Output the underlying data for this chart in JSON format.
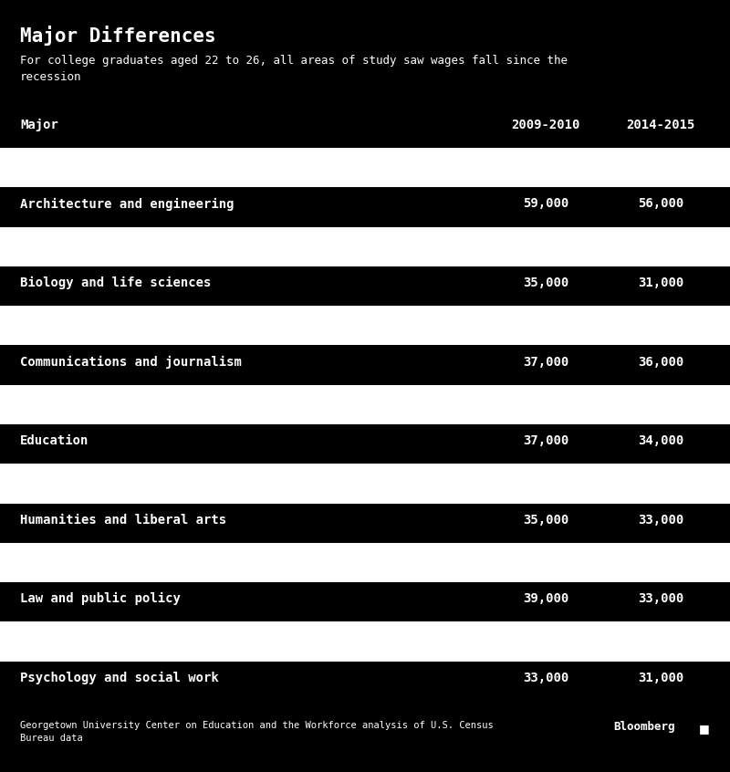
{
  "title": "Major Differences",
  "subtitle": "For college graduates aged 22 to 26, all areas of study saw wages fall since the\nrecession",
  "col_major": "Major",
  "col_2009": "2009-2010",
  "col_2014": "2014-2015",
  "rows": [
    {
      "major": "Architecture and engineering",
      "val2009": "59,000",
      "val2014": "56,000"
    },
    {
      "major": "Biology and life sciences",
      "val2009": "35,000",
      "val2014": "31,000"
    },
    {
      "major": "Communications and journalism",
      "val2009": "37,000",
      "val2014": "36,000"
    },
    {
      "major": "Education",
      "val2009": "37,000",
      "val2014": "34,000"
    },
    {
      "major": "Humanities and liberal arts",
      "val2009": "35,000",
      "val2014": "33,000"
    },
    {
      "major": "Law and public policy",
      "val2009": "39,000",
      "val2014": "33,000"
    },
    {
      "major": "Psychology and social work",
      "val2009": "33,000",
      "val2014": "31,000"
    }
  ],
  "bg_color": "#000000",
  "text_color": "#ffffff",
  "bar_color": "#ffffff",
  "footer_text": "Georgetown University Center on Education and the Workforce analysis of U.S. Census\nBureau data",
  "bloomberg_text": "Bloomberg",
  "bloomberg_icon": "■",
  "fig_width": 8.0,
  "fig_height": 8.46
}
